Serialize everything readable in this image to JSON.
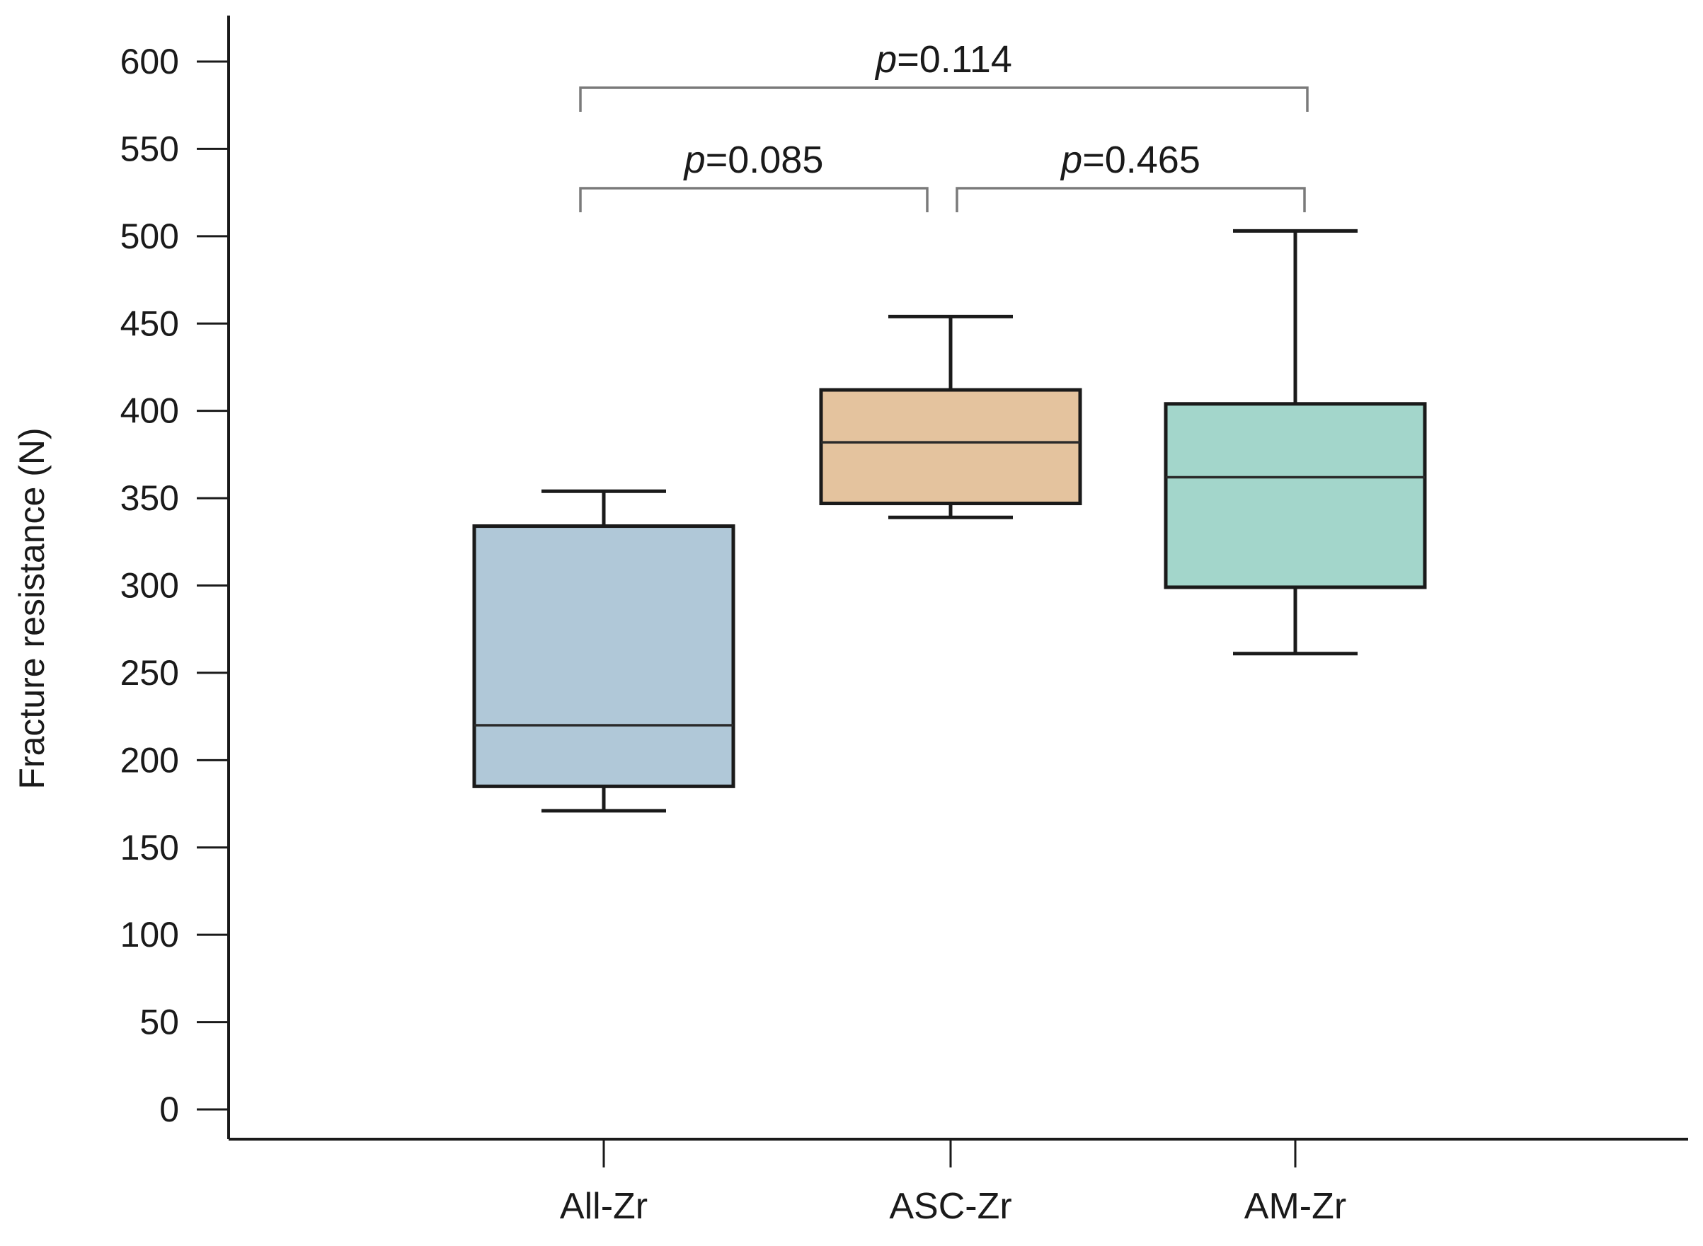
{
  "chart_data": {
    "type": "box",
    "title": "",
    "xlabel": "",
    "ylabel": "Fracture resistance (N)",
    "ylim": [
      0,
      600
    ],
    "yticks": [
      0,
      50,
      100,
      150,
      200,
      250,
      300,
      350,
      400,
      450,
      500,
      550,
      600
    ],
    "grid": false,
    "categories": [
      "All-Zr",
      "ASC-Zr",
      "AM-Zr"
    ],
    "boxes": [
      {
        "name": "All-Zr",
        "min": 171,
        "q1": 185,
        "median": 220,
        "q3": 334,
        "max": 354,
        "color": "#b0c8d8"
      },
      {
        "name": "ASC-Zr",
        "min": 339,
        "q1": 347,
        "median": 382,
        "q3": 412,
        "max": 454,
        "color": "#e4c39e"
      },
      {
        "name": "AM-Zr",
        "min": 261,
        "q1": 299,
        "median": 362,
        "q3": 404,
        "max": 503,
        "color": "#a3d6cb"
      }
    ],
    "annotations": [
      {
        "from": 0,
        "to": 1,
        "p_symbol": "p",
        "p_value": "=0.085",
        "level": 1
      },
      {
        "from": 1,
        "to": 2,
        "p_symbol": "p",
        "p_value": "=0.465",
        "level": 1
      },
      {
        "from": 0,
        "to": 2,
        "p_symbol": "p",
        "p_value": "=0.114",
        "level": 2
      }
    ]
  }
}
